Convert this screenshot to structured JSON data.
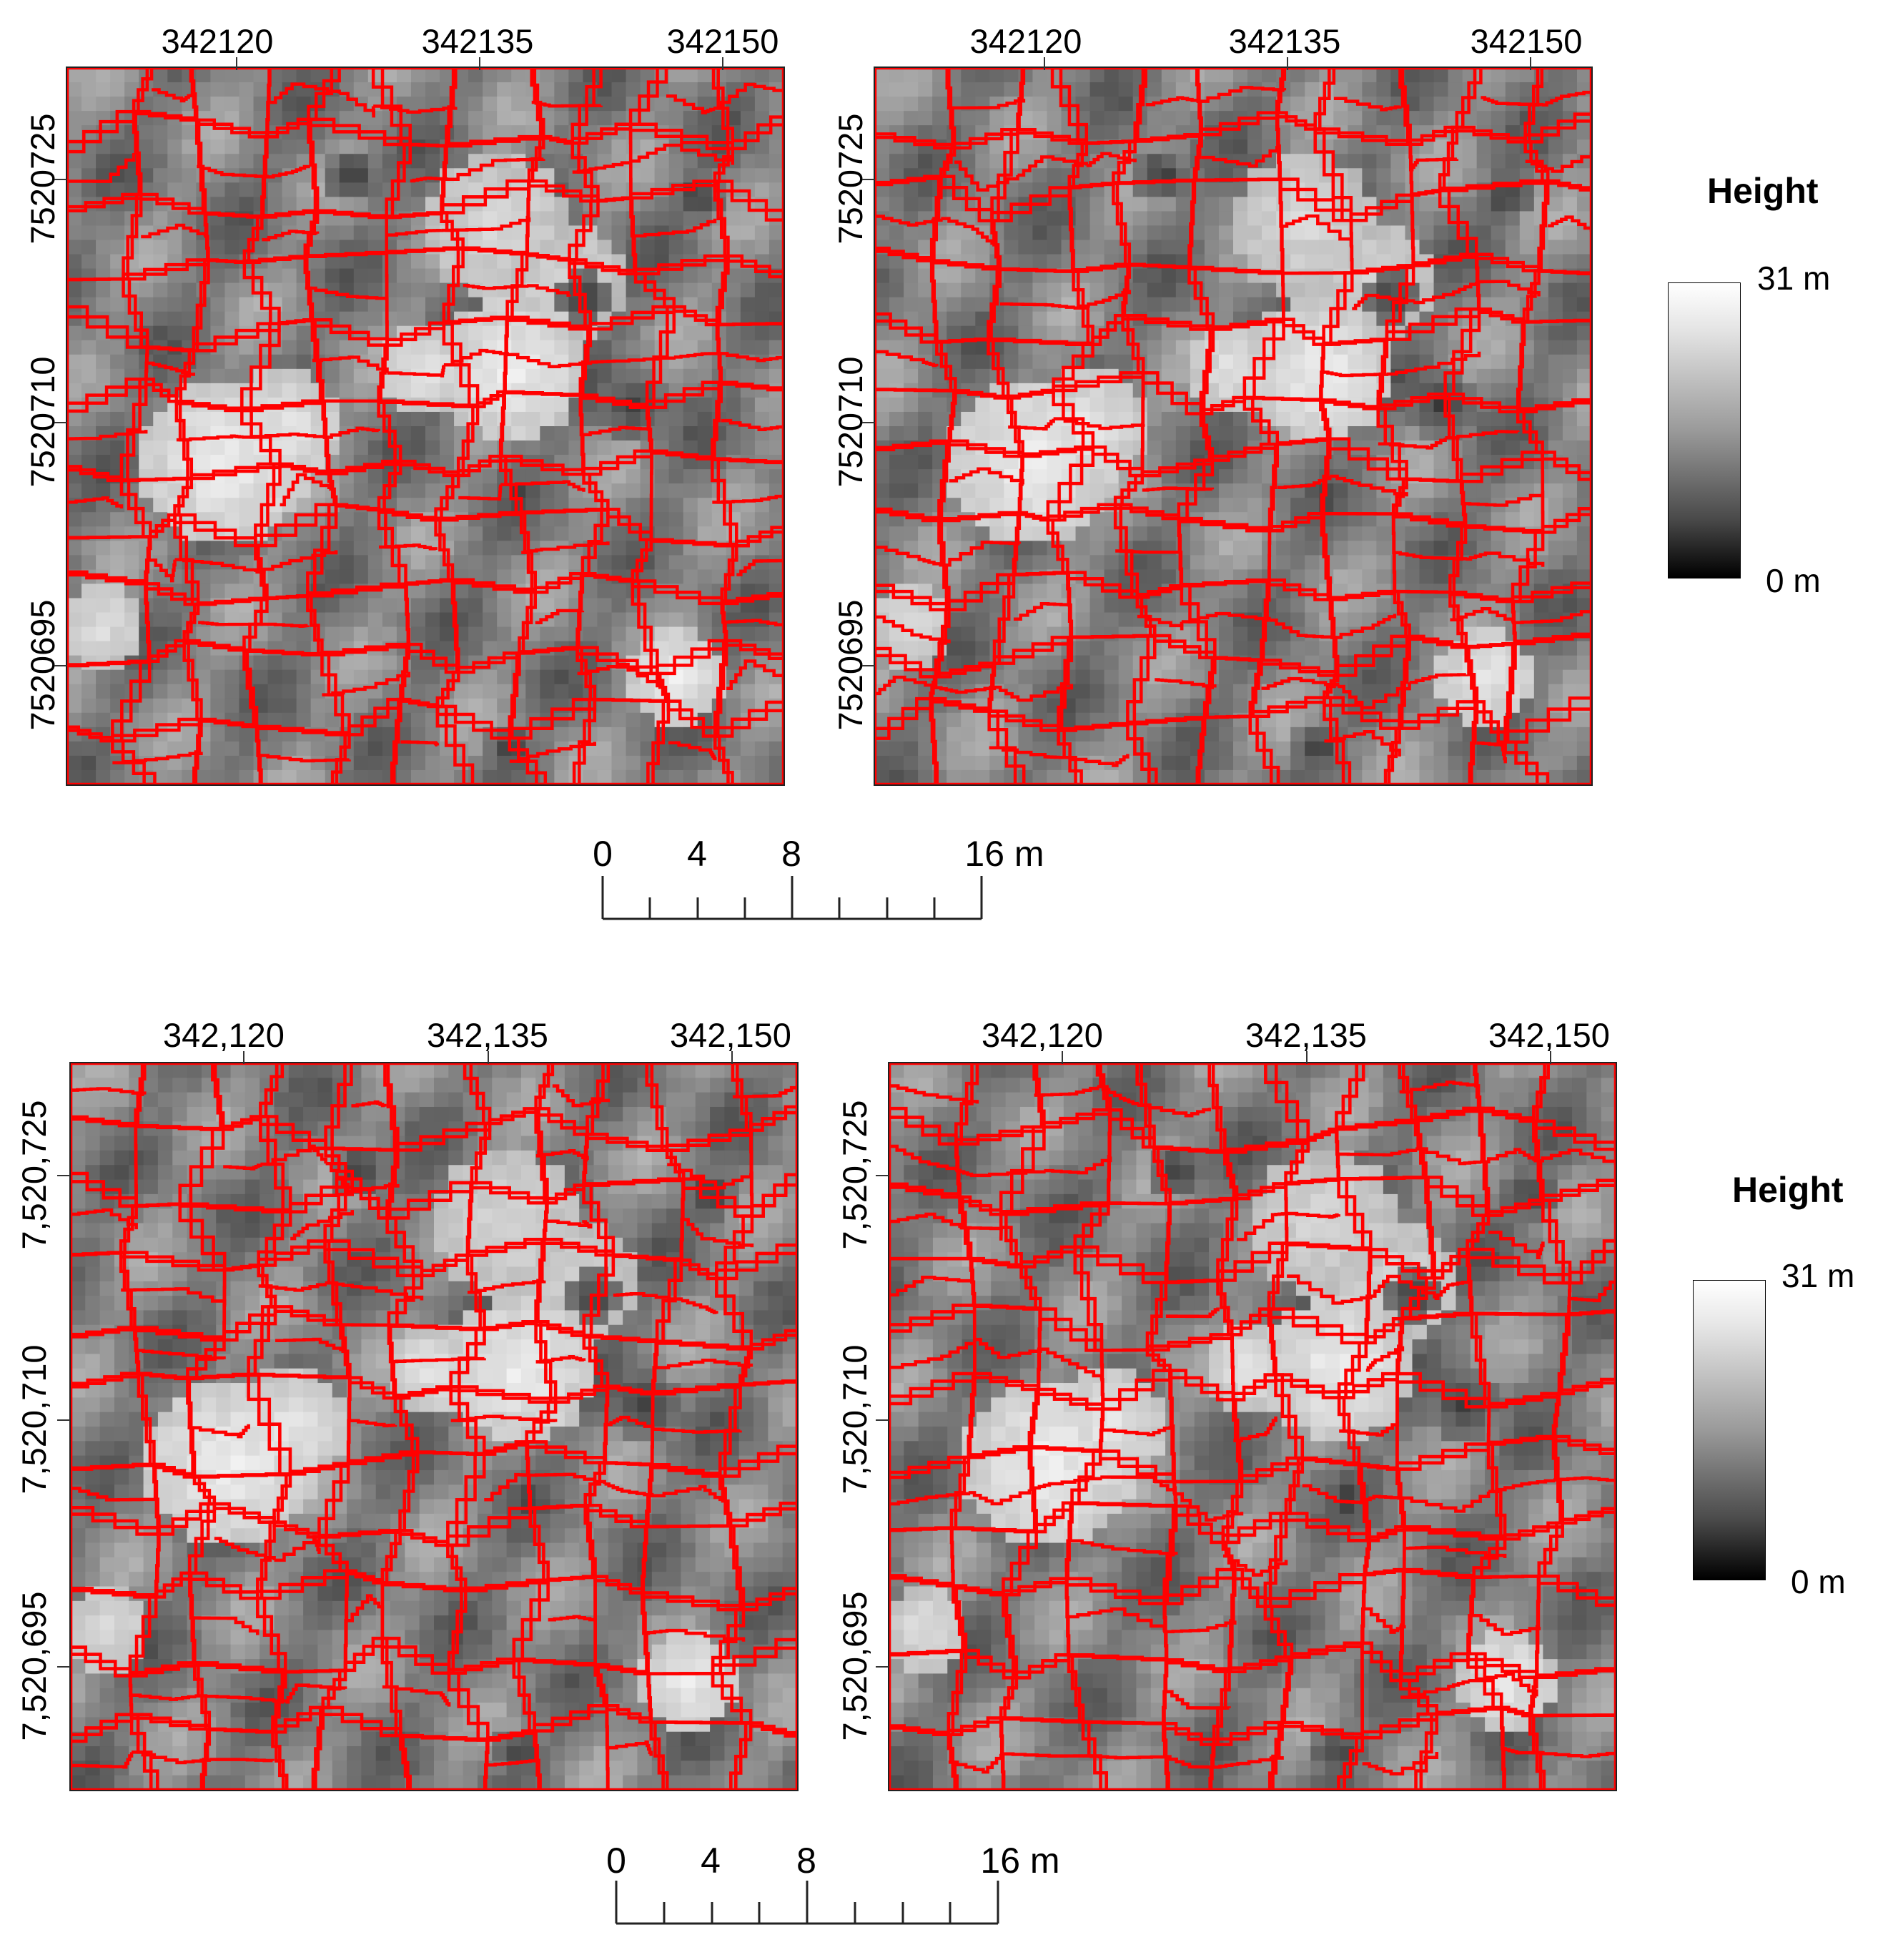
{
  "panels": [
    {
      "id": "top-left",
      "x_ticks": [
        "342120",
        "342135",
        "342150"
      ],
      "y_ticks": [
        "7520725",
        "7520710",
        "7520695"
      ],
      "seed": 11
    },
    {
      "id": "top-right",
      "x_ticks": [
        "342120",
        "342135",
        "342150"
      ],
      "y_ticks": [
        "7520725",
        "7520710",
        "7520695"
      ],
      "seed": 23
    },
    {
      "id": "bottom-left",
      "x_ticks": [
        "342,120",
        "342,135",
        "342,150"
      ],
      "y_ticks": [
        "7,520,725",
        "7,520,710",
        "7,520,695"
      ],
      "seed": 37
    },
    {
      "id": "bottom-right",
      "x_ticks": [
        "342,120",
        "342,135",
        "342,150"
      ],
      "y_ticks": [
        "7,520,725",
        "7,520,710",
        "7,520,695"
      ],
      "seed": 53
    }
  ],
  "legend_top": {
    "title": "Height",
    "max_label": "31 m",
    "min_label": "0 m"
  },
  "legend_bottom": {
    "title": "Height",
    "max_label": "31 m",
    "min_label": "0 m"
  },
  "scale_top": {
    "labels": [
      "0",
      "4",
      "8",
      "16 m"
    ]
  },
  "scale_bottom": {
    "labels": [
      "0",
      "4",
      "8",
      "16 m"
    ]
  },
  "colors": {
    "segment_outline": "#ff0000",
    "ramp_high": "#ffffff",
    "ramp_low": "#000000"
  }
}
